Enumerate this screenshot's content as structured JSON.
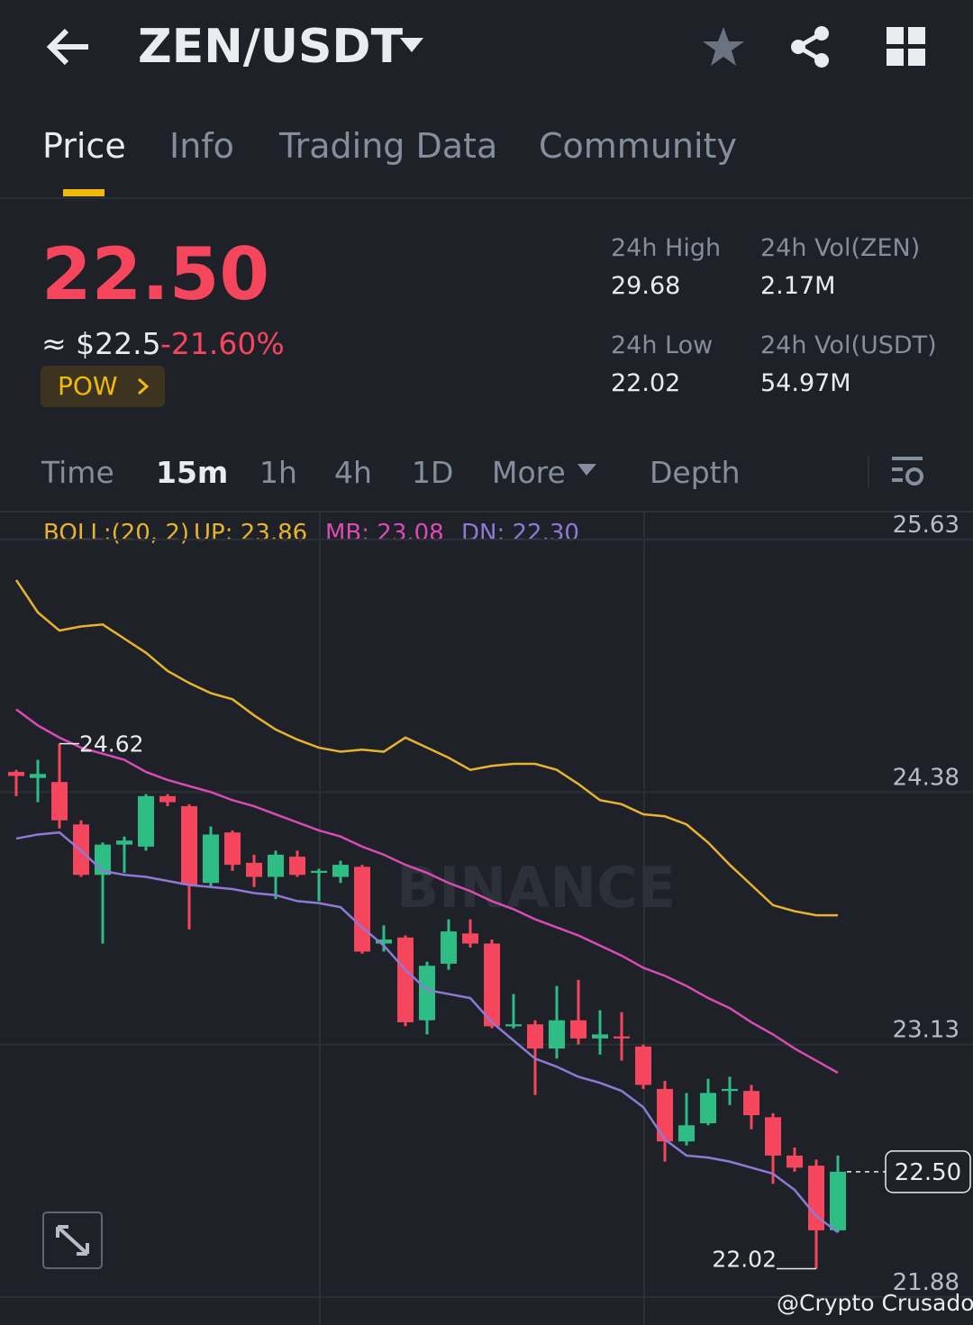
{
  "header": {
    "pair": "ZEN/USDT"
  },
  "tabs": [
    "Price",
    "Info",
    "Trading Data",
    "Community"
  ],
  "price": {
    "last": "22.50",
    "fiat": "≈ $22.5",
    "change": "-21.60%",
    "tag": "POW"
  },
  "stats": [
    {
      "label": "24h High",
      "value": "29.68"
    },
    {
      "label": "24h Vol(ZEN)",
      "value": "2.17M"
    },
    {
      "label": "24h Low",
      "value": "22.02"
    },
    {
      "label": "24h Vol(USDT)",
      "value": "54.97M"
    }
  ],
  "intervals": [
    "Time",
    "15m",
    "1h",
    "4h",
    "1D",
    "More",
    "Depth"
  ],
  "chart_data": {
    "type": "candlestick",
    "indicator": "BOLL:(20, 2)",
    "indicator_values": [
      "UP: 23.86",
      "MB: 23.08",
      "DN: 22.30"
    ],
    "watermark": "BINANCE",
    "up_color": "#2ebd85",
    "down_color": "#f6465d",
    "ylim": [
      21.79,
      25.76
    ],
    "yticks": [
      25.63,
      24.38,
      23.13,
      21.88
    ],
    "grid": true,
    "current_price": {
      "value": 22.5,
      "label": "22.50"
    },
    "candles": [
      {
        "open": 24.48,
        "high": 24.49,
        "low": 24.36,
        "close": 24.46
      },
      {
        "open": 24.45,
        "high": 24.54,
        "low": 24.33,
        "close": 24.47
      },
      {
        "open": 24.43,
        "high": 24.62,
        "low": 24.2,
        "close": 24.24
      },
      {
        "open": 24.22,
        "high": 24.24,
        "low": 23.96,
        "close": 23.97
      },
      {
        "open": 23.97,
        "high": 24.13,
        "low": 23.63,
        "close": 24.12
      },
      {
        "open": 24.12,
        "high": 24.16,
        "low": 23.98,
        "close": 24.14
      },
      {
        "open": 24.11,
        "high": 24.37,
        "low": 24.09,
        "close": 24.36
      },
      {
        "open": 24.36,
        "high": 24.37,
        "low": 24.31,
        "close": 24.33
      },
      {
        "open": 24.31,
        "high": 24.32,
        "low": 23.7,
        "close": 23.92
      },
      {
        "open": 23.93,
        "high": 24.21,
        "low": 23.91,
        "close": 24.17
      },
      {
        "open": 24.18,
        "high": 24.19,
        "low": 23.99,
        "close": 24.02
      },
      {
        "open": 24.03,
        "high": 24.07,
        "low": 23.91,
        "close": 23.96
      },
      {
        "open": 23.96,
        "high": 24.09,
        "low": 23.85,
        "close": 24.07
      },
      {
        "open": 24.06,
        "high": 24.09,
        "low": 23.96,
        "close": 23.97
      },
      {
        "open": 23.98,
        "high": 24.0,
        "low": 23.84,
        "close": 23.99
      },
      {
        "open": 23.96,
        "high": 24.04,
        "low": 23.93,
        "close": 24.02
      },
      {
        "open": 24.01,
        "high": 24.02,
        "low": 23.58,
        "close": 23.59
      },
      {
        "open": 23.63,
        "high": 23.72,
        "low": 23.59,
        "close": 23.65
      },
      {
        "open": 23.66,
        "high": 23.67,
        "low": 23.22,
        "close": 23.24
      },
      {
        "open": 23.25,
        "high": 23.54,
        "low": 23.18,
        "close": 23.52
      },
      {
        "open": 23.53,
        "high": 23.75,
        "low": 23.5,
        "close": 23.69
      },
      {
        "open": 23.68,
        "high": 23.75,
        "low": 23.61,
        "close": 23.63
      },
      {
        "open": 23.63,
        "high": 23.65,
        "low": 23.21,
        "close": 23.22
      },
      {
        "open": 23.22,
        "high": 23.38,
        "low": 23.21,
        "close": 23.23
      },
      {
        "open": 23.23,
        "high": 23.25,
        "low": 22.88,
        "close": 23.11
      },
      {
        "open": 23.11,
        "high": 23.42,
        "low": 23.06,
        "close": 23.25
      },
      {
        "open": 23.25,
        "high": 23.45,
        "low": 23.13,
        "close": 23.16
      },
      {
        "open": 23.16,
        "high": 23.3,
        "low": 23.08,
        "close": 23.18
      },
      {
        "open": 23.17,
        "high": 23.29,
        "low": 23.05,
        "close": 23.16
      },
      {
        "open": 23.12,
        "high": 23.13,
        "low": 22.91,
        "close": 22.93
      },
      {
        "open": 22.91,
        "high": 22.95,
        "low": 22.55,
        "close": 22.65
      },
      {
        "open": 22.65,
        "high": 22.89,
        "low": 22.63,
        "close": 22.73
      },
      {
        "open": 22.74,
        "high": 22.96,
        "low": 22.73,
        "close": 22.89
      },
      {
        "open": 22.9,
        "high": 22.97,
        "low": 22.83,
        "close": 22.91
      },
      {
        "open": 22.9,
        "high": 22.93,
        "low": 22.71,
        "close": 22.78
      },
      {
        "open": 22.77,
        "high": 22.79,
        "low": 22.44,
        "close": 22.58
      },
      {
        "open": 22.58,
        "high": 22.62,
        "low": 22.5,
        "close": 22.52
      },
      {
        "open": 22.53,
        "high": 22.56,
        "low": 22.02,
        "close": 22.21
      },
      {
        "open": 22.21,
        "high": 22.58,
        "low": 22.2,
        "close": 22.5
      }
    ],
    "series": [
      {
        "color": "#e8b32e",
        "values": [
          25.43,
          25.27,
          25.18,
          25.2,
          25.21,
          25.14,
          25.07,
          24.98,
          24.92,
          24.87,
          24.84,
          24.76,
          24.69,
          24.64,
          24.6,
          24.58,
          24.59,
          24.58,
          24.65,
          24.6,
          24.55,
          24.49,
          24.51,
          24.52,
          24.52,
          24.49,
          24.42,
          24.34,
          24.32,
          24.27,
          24.26,
          24.22,
          24.13,
          24.02,
          23.92,
          23.82,
          23.79,
          23.77,
          23.77
        ]
      },
      {
        "color": "#d94bb5",
        "values": [
          24.79,
          24.71,
          24.65,
          24.6,
          24.57,
          24.54,
          24.48,
          24.44,
          24.41,
          24.38,
          24.34,
          24.31,
          24.27,
          24.23,
          24.19,
          24.16,
          24.11,
          24.07,
          24.02,
          23.98,
          23.93,
          23.89,
          23.84,
          23.8,
          23.75,
          23.71,
          23.67,
          23.62,
          23.57,
          23.51,
          23.47,
          23.42,
          23.36,
          23.31,
          23.24,
          23.18,
          23.11,
          23.05,
          22.99
        ]
      },
      {
        "color": "#9079d6",
        "values": [
          24.15,
          24.17,
          24.18,
          24.09,
          23.99,
          23.97,
          23.96,
          23.94,
          23.92,
          23.91,
          23.9,
          23.88,
          23.87,
          23.84,
          23.83,
          23.81,
          23.71,
          23.62,
          23.5,
          23.4,
          23.38,
          23.36,
          23.24,
          23.15,
          23.06,
          23.02,
          22.97,
          22.94,
          22.9,
          22.82,
          22.66,
          22.58,
          22.57,
          22.55,
          22.52,
          22.49,
          22.41,
          22.28,
          22.2
        ]
      }
    ]
  },
  "footer": {
    "credit": "@Crypto Crusador"
  }
}
